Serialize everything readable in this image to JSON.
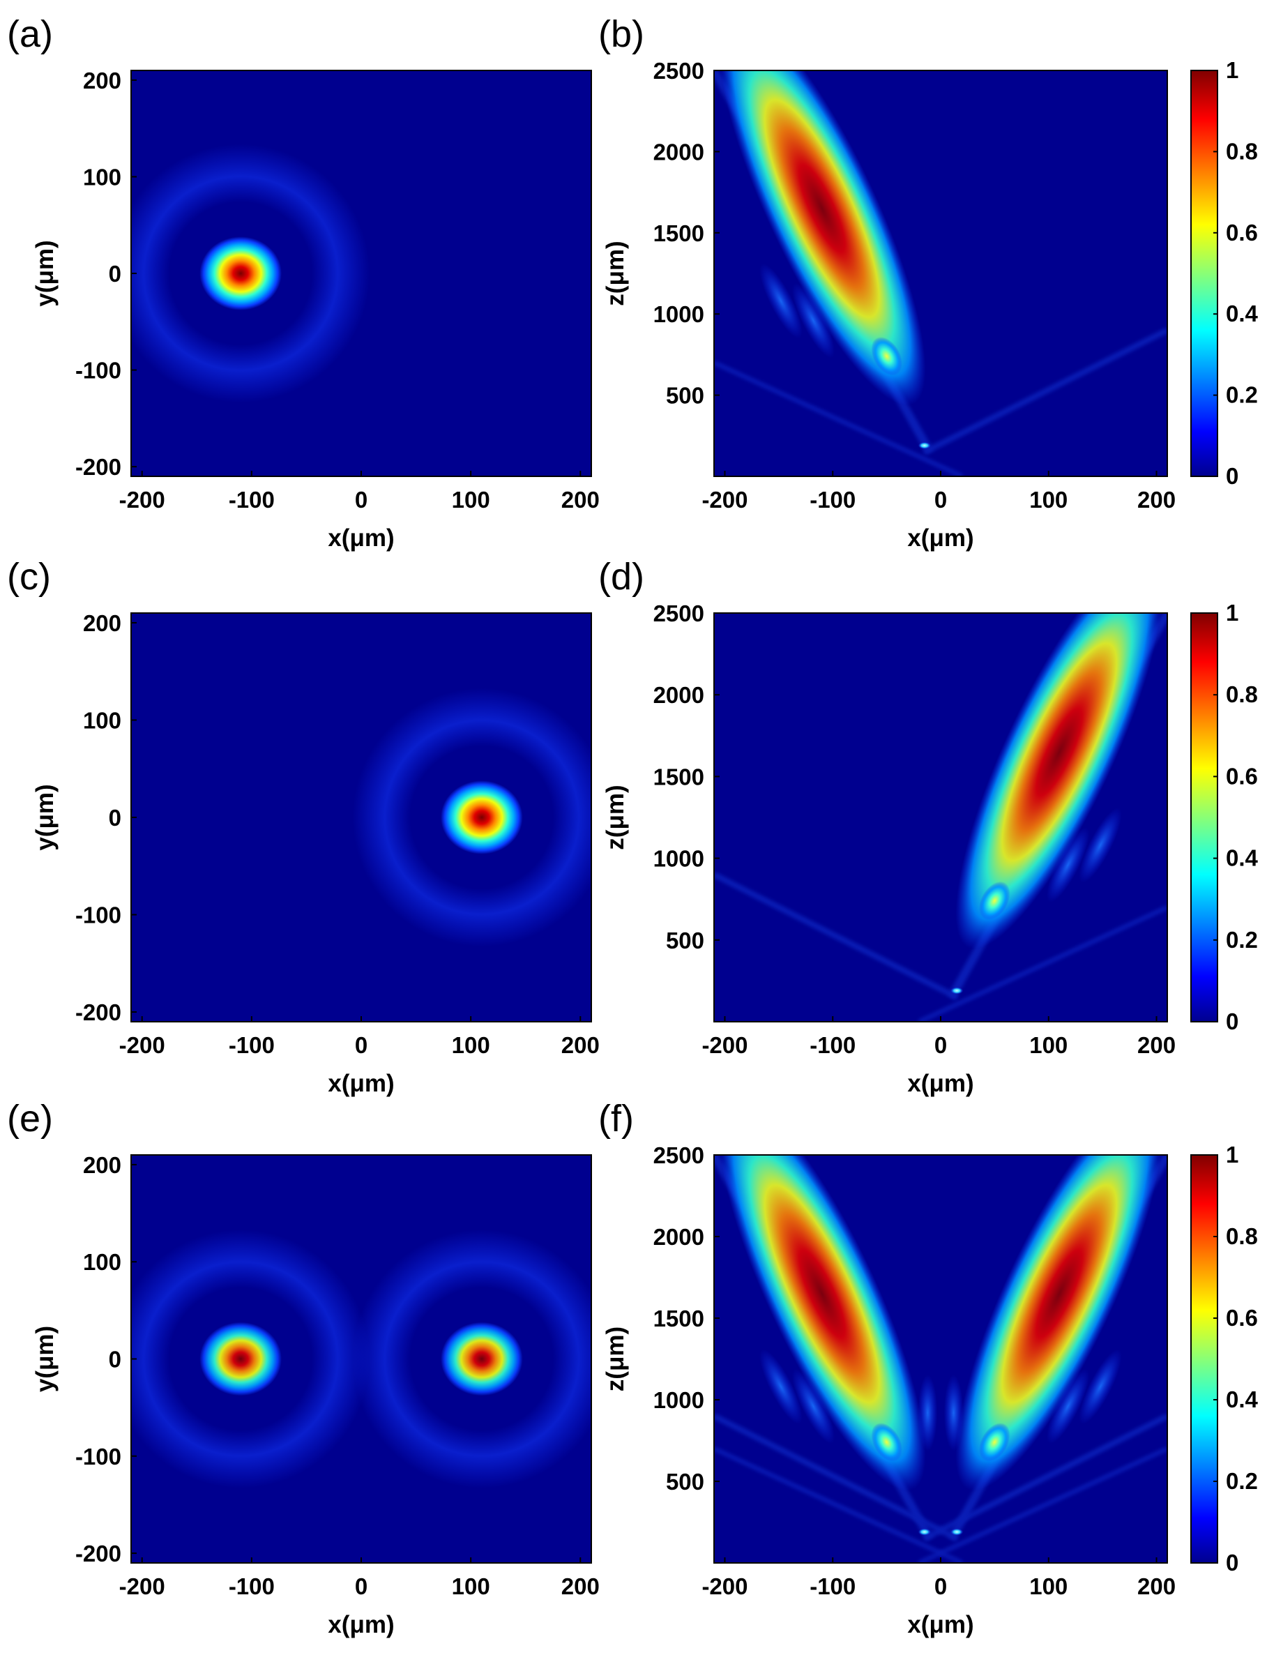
{
  "chart_data": [
    {
      "panel_label": "(a)",
      "type": "heatmap",
      "plane": "xy",
      "xlabel": "x(μm)",
      "ylabel": "y(μm)",
      "xlim": [
        -210,
        210
      ],
      "ylim": [
        -210,
        210
      ],
      "xticks": [
        "-200",
        "-100",
        "0",
        "100",
        "200"
      ],
      "yticks": [
        "200",
        "100",
        "0",
        "-100",
        "-200"
      ],
      "spots": [
        {
          "x": -110,
          "y": 0,
          "peak": 1
        }
      ]
    },
    {
      "panel_label": "(b)",
      "type": "heatmap",
      "plane": "xz",
      "xlabel": "x(μm)",
      "ylabel": "z(μm)",
      "xlim": [
        -210,
        210
      ],
      "ylim": [
        0,
        2500
      ],
      "xticks": [
        "-200",
        "-100",
        "0",
        "100",
        "200"
      ],
      "yticks": [
        "2500",
        "2000",
        "1500",
        "1000",
        "500"
      ],
      "main_lobes": [
        {
          "x": -110,
          "z": 1650,
          "peak": 1
        }
      ],
      "secondary_lobes": [
        {
          "x": -50,
          "z": 740,
          "peak": 0.45
        }
      ],
      "focus_spots": [
        {
          "x": -15,
          "z": 190,
          "peak": 0.4
        }
      ],
      "colorbar": {
        "ticks": [
          "1",
          "0.8",
          "0.6",
          "0.4",
          "0.2",
          "0"
        ],
        "colormap": "jet",
        "range": [
          0,
          1
        ]
      }
    },
    {
      "panel_label": "(c)",
      "type": "heatmap",
      "plane": "xy",
      "xlabel": "x(μm)",
      "ylabel": "y(μm)",
      "xlim": [
        -210,
        210
      ],
      "ylim": [
        -210,
        210
      ],
      "xticks": [
        "-200",
        "-100",
        "0",
        "100",
        "200"
      ],
      "yticks": [
        "200",
        "100",
        "0",
        "-100",
        "-200"
      ],
      "spots": [
        {
          "x": 110,
          "y": 0,
          "peak": 1
        }
      ]
    },
    {
      "panel_label": "(d)",
      "type": "heatmap",
      "plane": "xz",
      "xlabel": "x(μm)",
      "ylabel": "z(μm)",
      "xlim": [
        -210,
        210
      ],
      "ylim": [
        0,
        2500
      ],
      "xticks": [
        "-200",
        "-100",
        "0",
        "100",
        "200"
      ],
      "yticks": [
        "2500",
        "2000",
        "1500",
        "1000",
        "500"
      ],
      "main_lobes": [
        {
          "x": 110,
          "z": 1650,
          "peak": 1
        }
      ],
      "secondary_lobes": [
        {
          "x": 50,
          "z": 740,
          "peak": 0.45
        }
      ],
      "focus_spots": [
        {
          "x": 15,
          "z": 190,
          "peak": 0.4
        }
      ],
      "colorbar": {
        "ticks": [
          "1",
          "0.8",
          "0.6",
          "0.4",
          "0.2",
          "0"
        ],
        "colormap": "jet",
        "range": [
          0,
          1
        ]
      }
    },
    {
      "panel_label": "(e)",
      "type": "heatmap",
      "plane": "xy",
      "xlabel": "x(μm)",
      "ylabel": "y(μm)",
      "xlim": [
        -210,
        210
      ],
      "ylim": [
        -210,
        210
      ],
      "xticks": [
        "-200",
        "-100",
        "0",
        "100",
        "200"
      ],
      "yticks": [
        "200",
        "100",
        "0",
        "-100",
        "-200"
      ],
      "spots": [
        {
          "x": -110,
          "y": 0,
          "peak": 0.92
        },
        {
          "x": 110,
          "y": 0,
          "peak": 0.92
        }
      ]
    },
    {
      "panel_label": "(f)",
      "type": "heatmap",
      "plane": "xz",
      "xlabel": "x(μm)",
      "ylabel": "z(μm)",
      "xlim": [
        -210,
        210
      ],
      "ylim": [
        0,
        2500
      ],
      "xticks": [
        "-200",
        "-100",
        "0",
        "100",
        "200"
      ],
      "yticks": [
        "2500",
        "2000",
        "1500",
        "1000",
        "500"
      ],
      "main_lobes": [
        {
          "x": -110,
          "z": 1650,
          "peak": 0.92
        },
        {
          "x": 110,
          "z": 1650,
          "peak": 0.92
        }
      ],
      "secondary_lobes": [
        {
          "x": -50,
          "z": 740,
          "peak": 0.45
        },
        {
          "x": 50,
          "z": 740,
          "peak": 0.45
        }
      ],
      "focus_spots": [
        {
          "x": -15,
          "z": 190,
          "peak": 0.4
        },
        {
          "x": 15,
          "z": 190,
          "peak": 0.4
        }
      ],
      "colorbar": {
        "ticks": [
          "1",
          "0.8",
          "0.6",
          "0.4",
          "0.2",
          "0"
        ],
        "colormap": "jet",
        "range": [
          0,
          1
        ]
      }
    }
  ],
  "colors": {
    "background": "#00008f",
    "jet_low": "#00008f",
    "jet_high": "#800000"
  }
}
